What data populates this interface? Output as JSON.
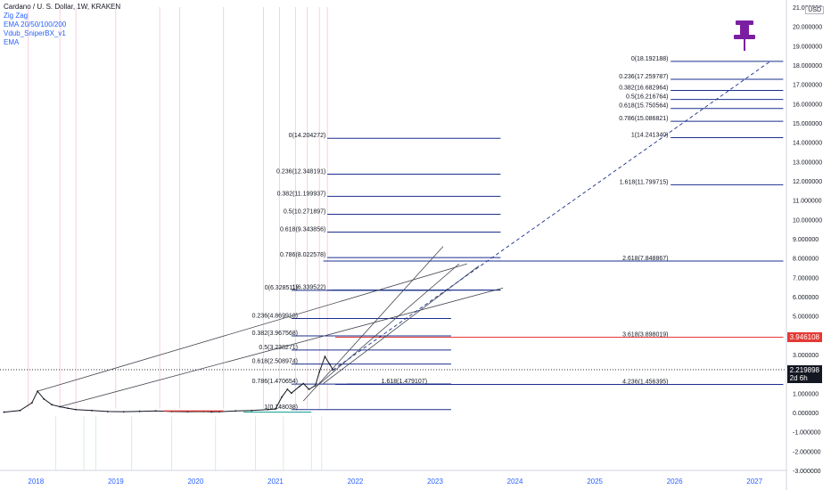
{
  "legend": {
    "symbol": "Cardano / U. S. Dollar, 1W, KRAKEN",
    "indicators": [
      "Zig Zag",
      "EMA 20/50/100/200",
      "Vdub_SniperBX_v1",
      "EMA"
    ]
  },
  "currency_label": "USD",
  "price_badges": {
    "level_price": "3.946108",
    "current_price": "2.219898",
    "countdown": "2d 6h"
  },
  "colors": {
    "fib_line": "#1a2f8c",
    "level_red": "#e53935",
    "trend_line": "#434651",
    "dashed": "#1a2f8c",
    "pin": "#7b1fa2",
    "price": "#131722"
  },
  "chart_data": {
    "type": "line",
    "title": "Cardano / U. S. Dollar, 1W, KRAKEN",
    "ylim": [
      -3.0,
      21.0
    ],
    "xlim": [
      2017.55,
      2027.4
    ],
    "grid": false,
    "y_ticks": [
      "21.000000",
      "20.000000",
      "19.000000",
      "18.000000",
      "17.000000",
      "16.000000",
      "15.000000",
      "14.000000",
      "13.000000",
      "12.000000",
      "11.000000",
      "10.000000",
      "9.000000",
      "8.000000",
      "7.000000",
      "6.000000",
      "5.000000",
      "4.000000",
      "3.000000",
      "2.000000",
      "1.000000",
      "0.000000",
      "-1.000000",
      "-2.000000",
      "-3.000000"
    ],
    "x_ticks": [
      {
        "label": "2018",
        "x": 2018.0
      },
      {
        "label": "2019",
        "x": 2019.0
      },
      {
        "label": "2020",
        "x": 2020.0
      },
      {
        "label": "2021",
        "x": 2021.0
      },
      {
        "label": "2022",
        "x": 2022.0
      },
      {
        "label": "2023",
        "x": 2023.0
      },
      {
        "label": "2024",
        "x": 2024.0
      },
      {
        "label": "2025",
        "x": 2025.0
      },
      {
        "label": "2026",
        "x": 2026.0
      },
      {
        "label": "2027",
        "x": 2027.0
      }
    ],
    "price_series": {
      "x": [
        2017.6,
        2017.8,
        2017.95,
        2018.02,
        2018.1,
        2018.2,
        2018.3,
        2018.4,
        2018.5,
        2018.7,
        2018.9,
        2019.1,
        2019.3,
        2019.5,
        2019.7,
        2019.9,
        2020.1,
        2020.2,
        2020.3,
        2020.5,
        2020.7,
        2020.9,
        2021.0,
        2021.08,
        2021.15,
        2021.2,
        2021.3,
        2021.35,
        2021.42,
        2021.5,
        2021.55,
        2021.62,
        2021.68,
        2021.72
      ],
      "y": [
        0.02,
        0.1,
        0.5,
        1.1,
        0.7,
        0.4,
        0.3,
        0.22,
        0.15,
        0.1,
        0.05,
        0.04,
        0.06,
        0.08,
        0.05,
        0.04,
        0.05,
        0.03,
        0.04,
        0.08,
        0.1,
        0.15,
        0.18,
        0.8,
        1.2,
        1.0,
        1.35,
        1.5,
        1.2,
        1.4,
        2.1,
        2.9,
        2.5,
        2.2
      ]
    },
    "fib_left": [
      {
        "label": "0(6.328511)",
        "value": 6.328511
      },
      {
        "label": "0.236(4.869918)",
        "value": 4.869918
      },
      {
        "label": "0.382(3.967568)",
        "value": 3.967568
      },
      {
        "label": "0.5(3.238271)",
        "value": 3.238271
      },
      {
        "label": "0.618(2.508974)",
        "value": 2.508974
      },
      {
        "label": "0.786(1.470654)",
        "value": 1.470654
      },
      {
        "label": "1(0.148038)",
        "value": 0.148038
      }
    ],
    "fib_mid": [
      {
        "label": "0(14.204272)",
        "value": 14.204272
      },
      {
        "label": "0.236(12.348191)",
        "value": 12.348191
      },
      {
        "label": "0.382(11.199937)",
        "value": 11.199937
      },
      {
        "label": "0.5(10.271897)",
        "value": 10.271897
      },
      {
        "label": "0.618(9.343856)",
        "value": 9.343856
      },
      {
        "label": "0.786(8.022578)",
        "value": 8.022578
      },
      {
        "label": "1(6.339522)",
        "value": 6.339522
      }
    ],
    "fib_ext_mid": [
      {
        "label": "1.618(1.479107)",
        "value": 1.479107
      }
    ],
    "fib_right": [
      {
        "label": "0(18.192188)",
        "value": 18.192188
      },
      {
        "label": "0.236(17.259787)",
        "value": 17.259787
      },
      {
        "label": "0.382(16.682964)",
        "value": 16.682964
      },
      {
        "label": "0.5(16.216764)",
        "value": 16.216764
      },
      {
        "label": "0.618(15.750564)",
        "value": 15.750564
      },
      {
        "label": "0.786(15.086821)",
        "value": 15.086821
      },
      {
        "label": "1(14.241340)",
        "value": 14.24134
      },
      {
        "label": "1.618(11.799715)",
        "value": 11.799715
      },
      {
        "label": "2.618(7.848867)",
        "value": 7.848867
      },
      {
        "label": "3.618(3.898019)",
        "value": 3.898019,
        "highlight": true
      },
      {
        "label": "4.236(1.456395)",
        "value": 1.456395
      }
    ],
    "trend_lines": [
      {
        "x1": 2018.02,
        "y1": 1.1,
        "x2": 2023.4,
        "y2": 7.7
      },
      {
        "x1": 2018.3,
        "y1": 0.3,
        "x2": 2023.85,
        "y2": 6.45
      },
      {
        "x1": 2021.35,
        "y1": 0.6,
        "x2": 2023.1,
        "y2": 8.6
      },
      {
        "x1": 2021.5,
        "y1": 1.3,
        "x2": 2023.3,
        "y2": 7.7
      },
      {
        "x1": 2021.6,
        "y1": 1.5,
        "x2": 2023.55,
        "y2": 7.6
      }
    ],
    "dashed_projection": {
      "x1": 2021.72,
      "y1": 2.2,
      "x2": 2027.2,
      "y2": 18.2
    }
  }
}
